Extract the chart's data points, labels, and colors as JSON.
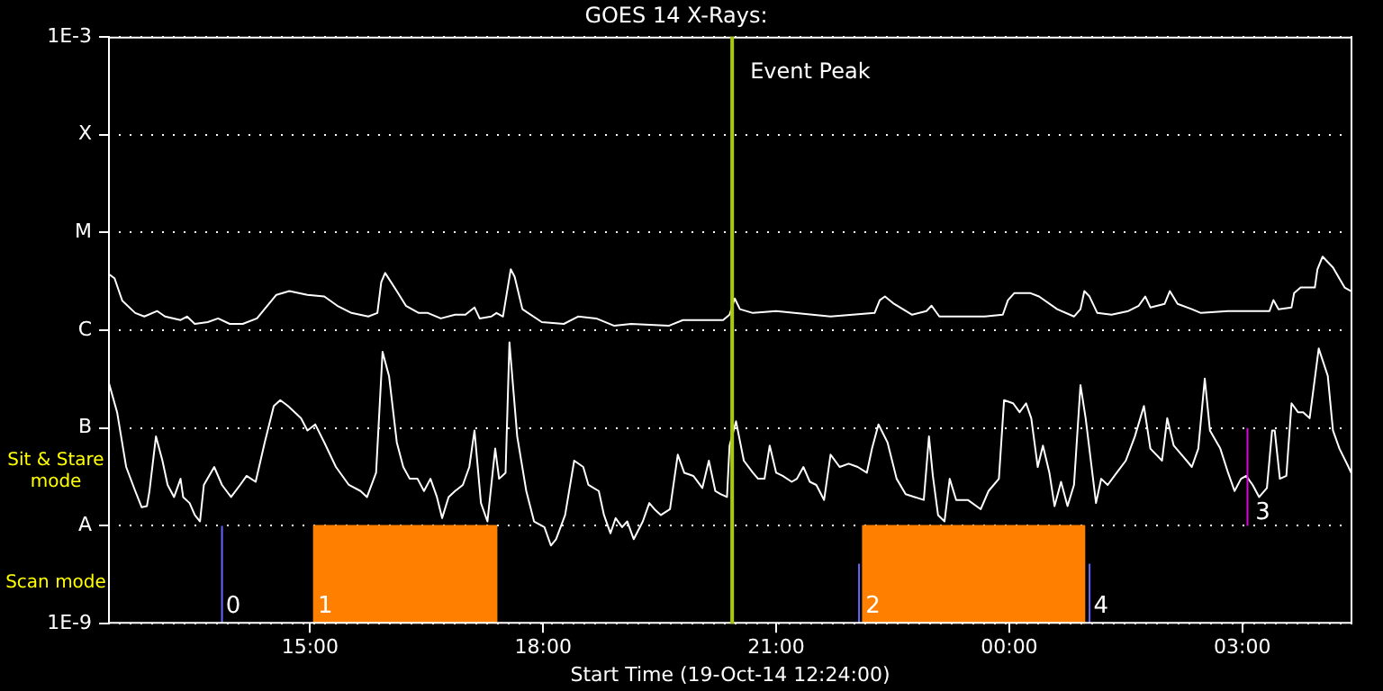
{
  "chart_data": {
    "type": "line",
    "title": "GOES 14 X-Rays:",
    "xlabel": "Start Time (19-Oct-14 12:24:00)",
    "xlim": [
      "--10-19T12:24",
      "--10-20T04:25"
    ],
    "xticks": [
      {
        "value": "--10-19T15:00",
        "label": "15:00"
      },
      {
        "value": "--10-19T18:00",
        "label": "18:00"
      },
      {
        "value": "--10-19T21:00",
        "label": "21:00"
      },
      {
        "value": "--10-20T00:00",
        "label": "00:00"
      },
      {
        "value": "--10-20T03:00",
        "label": "03:00"
      }
    ],
    "log": "y",
    "ylim": [
      1e-09,
      0.001
    ],
    "yticks": [
      {
        "value": 1e-09,
        "label": "1E-9"
      },
      {
        "value": 1e-08,
        "label": "A"
      },
      {
        "value": 1e-07,
        "label": "B"
      },
      {
        "value": 1e-06,
        "label": "C"
      },
      {
        "value": 1e-05,
        "label": "M"
      },
      {
        "value": 0.0001,
        "label": "X"
      },
      {
        "value": 0.001,
        "label": "1E-3"
      }
    ],
    "grid": "y",
    "legend": false,
    "marker": "none",
    "series": [
      {
        "type": "area",
        "color": "#ff8000",
        "x": [
          "--10-19T15:03",
          "--10-19T15:03",
          "--10-19T17:24",
          "--10-19T17:24"
        ],
        "values": [
          1e-09,
          1e-08,
          1e-08,
          1e-09
        ]
      },
      {
        "type": "area",
        "color": "#ff8000",
        "x": [
          "--10-19T22:07",
          "--10-19T22:07",
          "--10-20T00:58",
          "--10-20T00:58"
        ],
        "values": [
          1e-09,
          1e-08,
          1e-08,
          1e-09
        ]
      },
      {
        "type": "line",
        "color": "#6666ff",
        "x": [
          "--10-19T13:52",
          "--10-19T13:52"
        ],
        "values": [
          1e-09,
          1e-08
        ]
      },
      {
        "type": "line",
        "color": "#6666ff",
        "x": [
          "--10-19T22:04",
          "--10-19T22:04"
        ],
        "values": [
          1e-09,
          4.1e-09
        ]
      },
      {
        "type": "line",
        "color": "#6666ff",
        "x": [
          "--10-20T01:02",
          "--10-20T01:02"
        ],
        "values": [
          1e-09,
          4.1e-09
        ]
      },
      {
        "type": "line",
        "color": "#e000e0",
        "x": [
          "--10-20T03:04",
          "--10-20T03:04"
        ],
        "values": [
          1e-08,
          1e-07
        ]
      },
      {
        "color": "#ffffff",
        "x": [
          "--10-19T12:24",
          "--10-19T12:29",
          "--10-19T12:35",
          "--10-19T12:45",
          "--10-19T12:52",
          "--10-19T13:02",
          "--10-19T13:08",
          "--10-19T13:20",
          "--10-19T13:25",
          "--10-19T13:31",
          "--10-19T13:41",
          "--10-19T13:49",
          "--10-19T13:58",
          "--10-19T14:08",
          "--10-19T14:19",
          "--10-19T14:27",
          "--10-19T14:34",
          "--10-19T14:44",
          "--10-19T14:58",
          "--10-19T15:11",
          "--10-19T15:21",
          "--10-19T15:32",
          "--10-19T15:45",
          "--10-19T15:52",
          "--10-19T15:55",
          "--10-19T15:58",
          "--10-19T16:07",
          "--10-19T16:14",
          "--10-19T16:24",
          "--10-19T16:31",
          "--10-19T16:41",
          "--10-19T16:52",
          "--10-19T17:00",
          "--10-19T17:07",
          "--10-19T17:11",
          "--10-19T17:20",
          "--10-19T17:24",
          "--10-19T17:29",
          "--10-19T17:35",
          "--10-19T17:38",
          "--10-19T17:44",
          "--10-19T17:59",
          "--10-19T18:16",
          "--10-19T18:27",
          "--10-19T18:41",
          "--10-19T18:55",
          "--10-19T19:08",
          "--10-19T19:37",
          "--10-19T19:48",
          "--10-19T20:07",
          "--10-19T20:19",
          "--10-19T20:24",
          "--10-19T20:28",
          "--10-19T20:32",
          "--10-19T20:42",
          "--10-19T21:00",
          "--10-19T21:14",
          "--10-19T21:42",
          "--10-19T22:16",
          "--10-19T22:20",
          "--10-19T22:24",
          "--10-19T22:31",
          "--10-19T22:45",
          "--10-19T22:56",
          "--10-19T23:00",
          "--10-19T23:06",
          "--10-19T23:41",
          "--10-19T23:55",
          "--10-19T23:59",
          "--10-20T00:04",
          "--10-20T00:16",
          "--10-20T00:23",
          "--10-20T00:37",
          "--10-20T00:50",
          "--10-20T00:55",
          "--10-20T00:58",
          "--10-20T01:02",
          "--10-20T01:08",
          "--10-20T01:19",
          "--10-20T01:32",
          "--10-20T01:40",
          "--10-20T01:45",
          "--10-20T01:49",
          "--10-20T02:00",
          "--10-20T02:04",
          "--10-20T02:10",
          "--10-20T02:21",
          "--10-20T02:28",
          "--10-20T02:49",
          "--10-20T03:21",
          "--10-20T03:24",
          "--10-20T03:28",
          "--10-20T03:38",
          "--10-20T03:40",
          "--10-20T03:45",
          "--10-20T03:56",
          "--10-20T03:58",
          "--10-20T04:02",
          "--10-20T04:10",
          "--10-20T04:19",
          "--10-20T04:24"
        ],
        "values": [
          3.8e-06,
          3.4e-06,
          2e-06,
          1.5e-06,
          1.38e-06,
          1.57e-06,
          1.38e-06,
          1.27e-06,
          1.38e-06,
          1.16e-06,
          1.21e-06,
          1.32e-06,
          1.16e-06,
          1.16e-06,
          1.32e-06,
          1.78e-06,
          2.3e-06,
          2.51e-06,
          2.3e-06,
          2.21e-06,
          1.78e-06,
          1.5e-06,
          1.38e-06,
          1.5e-06,
          3.1e-06,
          3.85e-06,
          2.51e-06,
          1.78e-06,
          1.5e-06,
          1.5e-06,
          1.32e-06,
          1.44e-06,
          1.44e-06,
          1.71e-06,
          1.32e-06,
          1.38e-06,
          1.5e-06,
          1.38e-06,
          4.19e-06,
          3.53e-06,
          1.64e-06,
          1.21e-06,
          1.16e-06,
          1.38e-06,
          1.32e-06,
          1.11e-06,
          1.16e-06,
          1.11e-06,
          1.27e-06,
          1.27e-06,
          1.27e-06,
          1.44e-06,
          2.11e-06,
          1.64e-06,
          1.5e-06,
          1.57e-06,
          1.5e-06,
          1.38e-06,
          1.5e-06,
          2.03e-06,
          2.21e-06,
          1.86e-06,
          1.44e-06,
          1.57e-06,
          1.78e-06,
          1.38e-06,
          1.38e-06,
          1.44e-06,
          2.03e-06,
          2.4e-06,
          2.4e-06,
          2.21e-06,
          1.64e-06,
          1.38e-06,
          1.64e-06,
          2.51e-06,
          2.21e-06,
          1.5e-06,
          1.44e-06,
          1.57e-06,
          1.78e-06,
          2.21e-06,
          1.71e-06,
          1.86e-06,
          2.51e-06,
          1.86e-06,
          1.64e-06,
          1.5e-06,
          1.57e-06,
          1.57e-06,
          2.03e-06,
          1.64e-06,
          1.71e-06,
          2.4e-06,
          2.73e-06,
          2.73e-06,
          4.19e-06,
          5.65e-06,
          4.38e-06,
          2.73e-06,
          2.51e-06
        ]
      },
      {
        "color": "#ffffff",
        "x": [
          "--10-19T12:24",
          "--10-19T12:31",
          "--10-19T12:38",
          "--10-19T12:45",
          "--10-19T12:50",
          "--10-19T12:54",
          "--10-19T12:56",
          "--10-19T13:01",
          "--10-19T13:06",
          "--10-19T13:10",
          "--10-19T13:15",
          "--10-19T13:20",
          "--10-19T13:22",
          "--10-19T13:27",
          "--10-19T13:31",
          "--10-19T13:35",
          "--10-19T13:38",
          "--10-19T13:46",
          "--10-19T13:52",
          "--10-19T13:59",
          "--10-19T14:06",
          "--10-19T14:11",
          "--10-19T14:18",
          "--10-19T14:25",
          "--10-19T14:32",
          "--10-19T14:37",
          "--10-19T14:43",
          "--10-19T14:53",
          "--10-19T14:58",
          "--10-19T15:04",
          "--10-19T15:11",
          "--10-19T15:20",
          "--10-19T15:30",
          "--10-19T15:39",
          "--10-19T15:44",
          "--10-19T15:51",
          "--10-19T15:56",
          "--10-19T16:01",
          "--10-19T16:07",
          "--10-19T16:12",
          "--10-19T16:17",
          "--10-19T16:23",
          "--10-19T16:28",
          "--10-19T16:33",
          "--10-19T16:38",
          "--10-19T16:42",
          "--10-19T16:47",
          "--10-19T16:52",
          "--10-19T16:58",
          "--10-19T17:03",
          "--10-19T17:07",
          "--10-19T17:12",
          "--10-19T17:17",
          "--10-19T17:23",
          "--10-19T17:26",
          "--10-19T17:31",
          "--10-19T17:34",
          "--10-19T17:40",
          "--10-19T17:47",
          "--10-19T17:53",
          "--10-19T18:01",
          "--10-19T18:06",
          "--10-19T18:10",
          "--10-19T18:17",
          "--10-19T18:24",
          "--10-19T18:31",
          "--10-19T18:35",
          "--10-19T18:43",
          "--10-19T18:47",
          "--10-19T18:52",
          "--10-19T18:56",
          "--10-19T19:01",
          "--10-19T19:05",
          "--10-19T19:10",
          "--10-19T19:17",
          "--10-19T19:22",
          "--10-19T19:26",
          "--10-19T19:31",
          "--10-19T19:38",
          "--10-19T19:44",
          "--10-19T19:49",
          "--10-19T19:56",
          "--10-19T20:03",
          "--10-19T20:08",
          "--10-19T20:13",
          "--10-19T20:17",
          "--10-19T20:22",
          "--10-19T20:24",
          "--10-19T20:29",
          "--10-19T20:35",
          "--10-19T20:42",
          "--10-19T20:46",
          "--10-19T20:51",
          "--10-19T20:55",
          "--10-19T21:00",
          "--10-19T21:05",
          "--10-19T21:12",
          "--10-19T21:16",
          "--10-19T21:21",
          "--10-19T21:26",
          "--10-19T21:31",
          "--10-19T21:37",
          "--10-19T21:42",
          "--10-19T21:49",
          "--10-19T21:56",
          "--10-19T22:03",
          "--10-19T22:10",
          "--10-19T22:14",
          "--10-19T22:19",
          "--10-19T22:26",
          "--10-19T22:33",
          "--10-19T22:40",
          "--10-19T22:47",
          "--10-19T22:54",
          "--10-19T22:58",
          "--10-19T23:01",
          "--10-19T23:05",
          "--10-19T23:10",
          "--10-19T23:14",
          "--10-19T23:19",
          "--10-19T23:28",
          "--10-19T23:38",
          "--10-19T23:44",
          "--10-19T23:52",
          "--10-19T23:56",
          "--10-20T00:03",
          "--10-20T00:08",
          "--10-20T00:13",
          "--10-20T00:17",
          "--10-20T00:22",
          "--10-20T00:26",
          "--10-20T00:31",
          "--10-20T00:35",
          "--10-20T00:40",
          "--10-20T00:45",
          "--10-20T00:50",
          "--10-20T00:55",
          "--10-20T00:59",
          "--10-20T01:07",
          "--10-20T01:11",
          "--10-20T01:16",
          "--10-20T01:23",
          "--10-20T01:30",
          "--10-20T01:37",
          "--10-20T01:44",
          "--10-20T01:49",
          "--10-20T01:58",
          "--10-20T02:02",
          "--10-20T02:07",
          "--10-20T02:17",
          "--10-20T02:21",
          "--10-20T02:26",
          "--10-20T02:31",
          "--10-20T02:35",
          "--10-20T02:43",
          "--10-20T02:49",
          "--10-20T02:54",
          "--10-20T02:59",
          "--10-20T03:03",
          "--10-20T03:08",
          "--10-20T03:13",
          "--10-20T03:19",
          "--10-20T03:23",
          "--10-20T03:25",
          "--10-20T03:29",
          "--10-20T03:34",
          "--10-20T03:38",
          "--10-20T03:43",
          "--10-20T03:47",
          "--10-20T03:52",
          "--10-20T03:59",
          "--10-20T04:06",
          "--10-20T04:10",
          "--10-20T04:15",
          "--10-20T04:22",
          "--10-20T04:24"
        ],
        "values": [
          3.1e-07,
          1.45e-07,
          4e-08,
          2.27e-08,
          1.55e-08,
          1.59e-08,
          2.27e-08,
          8.2e-08,
          4.64e-08,
          2.62e-08,
          1.97e-08,
          3.03e-08,
          1.97e-08,
          1.71e-08,
          1.29e-08,
          1.11e-08,
          2.62e-08,
          4e-08,
          2.62e-08,
          1.97e-08,
          2.62e-08,
          3.24e-08,
          2.82e-08,
          7.13e-08,
          1.68e-07,
          1.93e-07,
          1.68e-07,
          1.26e-07,
          9.44e-08,
          1.09e-07,
          7.13e-08,
          4e-08,
          2.62e-08,
          2.27e-08,
          1.97e-08,
          3.49e-08,
          6e-07,
          3.4e-07,
          7.13e-08,
          4e-08,
          3.03e-08,
          3.03e-08,
          2.27e-08,
          3.03e-08,
          1.97e-08,
          1.2e-08,
          1.97e-08,
          2.27e-08,
          2.62e-08,
          4e-08,
          9.44e-08,
          1.71e-08,
          1.11e-08,
          6.16e-08,
          3.03e-08,
          3.49e-08,
          7.5e-07,
          8.2e-08,
          2.27e-08,
          1.11e-08,
          9.7e-09,
          6.3e-09,
          7.3e-09,
          1.29e-08,
          4.64e-08,
          4e-08,
          2.62e-08,
          2.27e-08,
          1.29e-08,
          8.4e-09,
          1.2e-08,
          9.7e-09,
          1.11e-08,
          7.3e-09,
          1.11e-08,
          1.71e-08,
          1.48e-08,
          1.29e-08,
          1.48e-08,
          5.35e-08,
          3.49e-08,
          3.24e-08,
          2.44e-08,
          4.64e-08,
          2.27e-08,
          2.11e-08,
          1.97e-08,
          6.62e-08,
          1.17e-07,
          4.64e-08,
          3.49e-08,
          3.03e-08,
          3.03e-08,
          6.62e-08,
          3.49e-08,
          3.24e-08,
          2.82e-08,
          3.03e-08,
          4e-08,
          2.82e-08,
          2.62e-08,
          1.84e-08,
          5.35e-08,
          4e-08,
          4.32e-08,
          4e-08,
          3.49e-08,
          6.16e-08,
          1.09e-07,
          7.13e-08,
          3.03e-08,
          2.11e-08,
          1.97e-08,
          1.84e-08,
          8.2e-08,
          3.24e-08,
          1.29e-08,
          1.11e-08,
          3.03e-08,
          1.84e-08,
          1.84e-08,
          1.48e-08,
          2.27e-08,
          3.03e-08,
          1.93e-07,
          1.79e-07,
          1.45e-07,
          1.79e-07,
          1.26e-07,
          4e-08,
          6.62e-08,
          3.49e-08,
          1.59e-08,
          2.82e-08,
          1.59e-08,
          2.62e-08,
          2.75e-07,
          1.26e-07,
          1.71e-08,
          3.03e-08,
          2.62e-08,
          3.49e-08,
          4.64e-08,
          8.2e-08,
          1.68e-07,
          6.16e-08,
          4.64e-08,
          1.26e-07,
          6.62e-08,
          4.64e-08,
          4e-08,
          6.16e-08,
          3.2e-07,
          9.44e-08,
          6.16e-08,
          3.49e-08,
          2.27e-08,
          3.03e-08,
          3.24e-08,
          2.62e-08,
          1.97e-08,
          2.44e-08,
          9.44e-08,
          9.44e-08,
          3.03e-08,
          3.24e-08,
          1.79e-07,
          1.45e-07,
          1.45e-07,
          1.26e-07,
          6.5e-07,
          3.41e-07,
          9.44e-08,
          6.16e-08,
          4e-08,
          3.49e-08
        ]
      }
    ],
    "ref_lines": [
      {
        "axis": "x",
        "value": "--10-19T20:26",
        "label": "Event Peak",
        "color": "#a8cc00"
      }
    ],
    "annotations": [
      "Sit & Stare mode",
      "Scan mode",
      {
        "text": "0",
        "x": "--10-19T13:55",
        "y": 1.5e-09
      },
      {
        "text": "1",
        "x": "--10-19T15:06",
        "y": 1.5e-09
      },
      {
        "text": "2",
        "x": "--10-19T22:09",
        "y": 1.5e-09
      },
      {
        "text": "3",
        "x": "--10-20T03:10",
        "y": 1.35e-08
      },
      {
        "text": "4",
        "x": "--10-20T01:05",
        "y": 1.5e-09
      }
    ]
  }
}
